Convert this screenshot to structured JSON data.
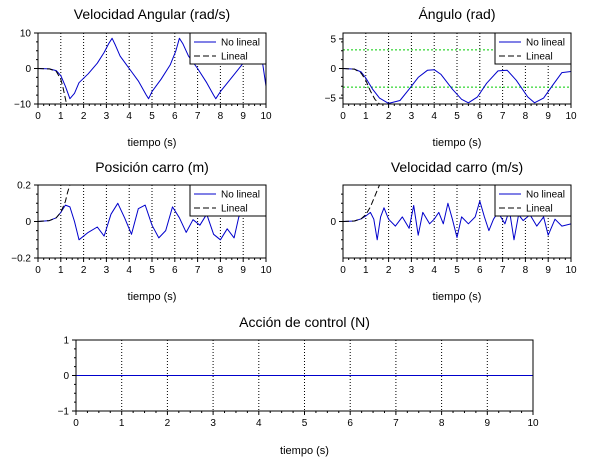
{
  "chart_data": [
    {
      "type": "line",
      "title": "Velocidad Angular (rad/s)",
      "xlabel": "tiempo (s)",
      "ylabel": "",
      "xlim": [
        0,
        10
      ],
      "ylim": [
        -10,
        10
      ],
      "xticks": [
        0,
        1,
        2,
        3,
        4,
        5,
        6,
        7,
        8,
        9,
        10
      ],
      "yticks": [
        -10,
        0,
        10
      ],
      "grid": "dotted-vertical",
      "legend": "top-right",
      "series": [
        {
          "name": "No lineal",
          "color": "#0000cc",
          "style": "solid",
          "x": [
            0,
            0.5,
            0.8,
            1.0,
            1.2,
            1.4,
            1.6,
            1.8,
            2.2,
            2.6,
            2.9,
            3.1,
            3.25,
            3.4,
            3.6,
            4.0,
            4.4,
            4.75,
            4.85,
            5.0,
            5.4,
            5.8,
            6.05,
            6.2,
            6.35,
            6.6,
            7.0,
            7.4,
            7.7,
            7.8,
            8.0,
            8.5,
            9.0,
            9.4,
            9.7,
            10.0
          ],
          "y": [
            0,
            -0.1,
            -0.6,
            -2,
            -5,
            -8.5,
            -7,
            -4,
            -1.5,
            1.5,
            4.5,
            7,
            8.5,
            6.5,
            3.5,
            0,
            -3.5,
            -7.5,
            -8.5,
            -6.5,
            -3,
            1,
            5,
            8.5,
            7,
            3.5,
            0,
            -4,
            -7.5,
            -8.5,
            -6.5,
            -2.5,
            1.5,
            4.5,
            8,
            -5
          ]
        },
        {
          "name": "Lineal",
          "color": "#000000",
          "style": "dashed",
          "x": [
            0,
            0.5,
            0.8,
            1.0,
            1.1,
            1.2,
            1.25
          ],
          "y": [
            0,
            -0.1,
            -0.8,
            -3,
            -5.5,
            -8.5,
            -10
          ]
        }
      ]
    },
    {
      "type": "line",
      "title": "Ángulo (rad)",
      "xlabel": "tiempo (s)",
      "ylabel": "",
      "xlim": [
        0,
        10
      ],
      "ylim": [
        -6,
        6
      ],
      "xticks": [
        0,
        1,
        2,
        3,
        4,
        5,
        6,
        7,
        8,
        9,
        10
      ],
      "yticks": [
        -5,
        0,
        5
      ],
      "grid": "dotted-vertical",
      "legend": "top-right",
      "series": [
        {
          "name": "No lineal",
          "color": "#0000cc",
          "style": "solid",
          "x": [
            0,
            0.5,
            0.8,
            1.0,
            1.3,
            1.6,
            2.0,
            2.5,
            2.9,
            3.3,
            3.7,
            4.0,
            4.3,
            4.8,
            5.2,
            5.5,
            5.9,
            6.3,
            6.8,
            7.2,
            7.6,
            8.1,
            8.4,
            8.8,
            9.2,
            9.6,
            10.0
          ],
          "y": [
            0,
            -0.1,
            -0.6,
            -1.6,
            -3.5,
            -5,
            -5.9,
            -5.4,
            -3.5,
            -1.5,
            -0.3,
            -0.2,
            -1,
            -3.5,
            -5.2,
            -5.8,
            -4.8,
            -2.5,
            -0.4,
            -0.3,
            -2,
            -4.8,
            -5.8,
            -5,
            -2.8,
            -0.7,
            -0.5
          ]
        },
        {
          "name": "Lineal",
          "color": "#000000",
          "style": "dashed",
          "x": [
            0,
            0.5,
            0.8,
            1.0,
            1.2,
            1.4,
            1.6
          ],
          "y": [
            0,
            -0.1,
            -0.8,
            -2,
            -3.8,
            -5.2,
            -6
          ]
        }
      ],
      "reference_lines": {
        "color": "#00cc00",
        "y": [
          3.14,
          -3.14
        ]
      }
    },
    {
      "type": "line",
      "title": "Posición carro (m)",
      "xlabel": "tiempo (s)",
      "ylabel": "",
      "xlim": [
        0,
        10
      ],
      "ylim": [
        -0.2,
        0.2
      ],
      "xticks": [
        0,
        1,
        2,
        3,
        4,
        5,
        6,
        7,
        8,
        9,
        10
      ],
      "yticks": [
        -0.2,
        0,
        0.2
      ],
      "grid": "dotted-vertical",
      "legend": "top-right",
      "series": [
        {
          "name": "No lineal",
          "color": "#0000cc",
          "style": "solid",
          "x": [
            0,
            0.5,
            0.8,
            1.0,
            1.2,
            1.4,
            1.6,
            1.8,
            2.2,
            2.6,
            2.9,
            3.2,
            3.5,
            3.8,
            4.1,
            4.4,
            4.7,
            5.0,
            5.3,
            5.6,
            5.9,
            6.2,
            6.5,
            6.8,
            7.1,
            7.4,
            7.7,
            8.0,
            8.3,
            8.6,
            8.8,
            9.0
          ],
          "y": [
            0,
            0.005,
            0.02,
            0.05,
            0.09,
            0.08,
            0,
            -0.1,
            -0.06,
            -0.03,
            -0.08,
            0.04,
            0.1,
            0.02,
            -0.07,
            0.07,
            0.09,
            -0.02,
            -0.09,
            -0.05,
            0.08,
            0.02,
            -0.06,
            0.01,
            -0.02,
            0.04,
            -0.07,
            -0.1,
            -0.04,
            -0.09,
            0.02,
            0.1
          ]
        },
        {
          "name": "Lineal",
          "color": "#000000",
          "style": "dashed",
          "x": [
            0,
            0.5,
            0.8,
            1.0,
            1.2,
            1.3,
            1.4
          ],
          "y": [
            0,
            0.005,
            0.02,
            0.05,
            0.11,
            0.16,
            0.2
          ]
        }
      ]
    },
    {
      "type": "line",
      "title": "Velocidad carro (m/s)",
      "xlabel": "tiempo (s)",
      "ylabel": "",
      "xlim": [
        0,
        10
      ],
      "ylim": [
        -0.8,
        0.8
      ],
      "xticks": [
        0,
        1,
        2,
        3,
        4,
        5,
        6,
        7,
        8,
        9,
        10
      ],
      "yticks": [
        0
      ],
      "grid": "dotted-vertical",
      "legend": "top-right",
      "series": [
        {
          "name": "No lineal",
          "color": "#0000cc",
          "style": "solid",
          "x": [
            0,
            0.5,
            0.8,
            1.0,
            1.2,
            1.35,
            1.5,
            1.65,
            1.8,
            2.0,
            2.3,
            2.6,
            2.9,
            3.1,
            3.3,
            3.5,
            3.8,
            4.0,
            4.2,
            4.4,
            4.6,
            4.8,
            5.0,
            5.2,
            5.5,
            5.8,
            6.0,
            6.2,
            6.4,
            6.6,
            6.8,
            7.1,
            7.3,
            7.5,
            7.7,
            7.9,
            8.2,
            8.5,
            8.8,
            9.0,
            9.3,
            9.6,
            10.0
          ],
          "y": [
            0,
            0.01,
            0.06,
            0.12,
            0.2,
            0.05,
            -0.4,
            0.1,
            0.3,
            0.05,
            -0.1,
            0.1,
            -0.15,
            0.35,
            -0.3,
            0.2,
            -0.05,
            0.05,
            0.2,
            -0.05,
            0.4,
            0.05,
            -0.35,
            0.1,
            -0.05,
            0.1,
            0.45,
            0.1,
            -0.2,
            0.05,
            0.2,
            -0.05,
            0.25,
            -0.4,
            0.15,
            0.02,
            0.15,
            -0.1,
            0.1,
            -0.3,
            0.05,
            -0.1,
            -0.05
          ]
        },
        {
          "name": "Lineal",
          "color": "#000000",
          "style": "dashed",
          "x": [
            0,
            0.5,
            0.8,
            1.0,
            1.2,
            1.35,
            1.5,
            1.6
          ],
          "y": [
            0,
            0.01,
            0.06,
            0.15,
            0.32,
            0.5,
            0.68,
            0.8
          ]
        }
      ]
    },
    {
      "type": "line",
      "title": "Acción de control (N)",
      "xlabel": "tiempo (s)",
      "ylabel": "",
      "xlim": [
        0,
        10
      ],
      "ylim": [
        -1,
        1
      ],
      "xticks": [
        0,
        1,
        2,
        3,
        4,
        5,
        6,
        7,
        8,
        9,
        10
      ],
      "yticks": [
        -1,
        0,
        1
      ],
      "grid": "dotted-vertical",
      "legend": "none",
      "series": [
        {
          "color": "#0000cc",
          "style": "solid",
          "x": [
            0,
            10
          ],
          "y": [
            0,
            0
          ]
        }
      ]
    }
  ]
}
